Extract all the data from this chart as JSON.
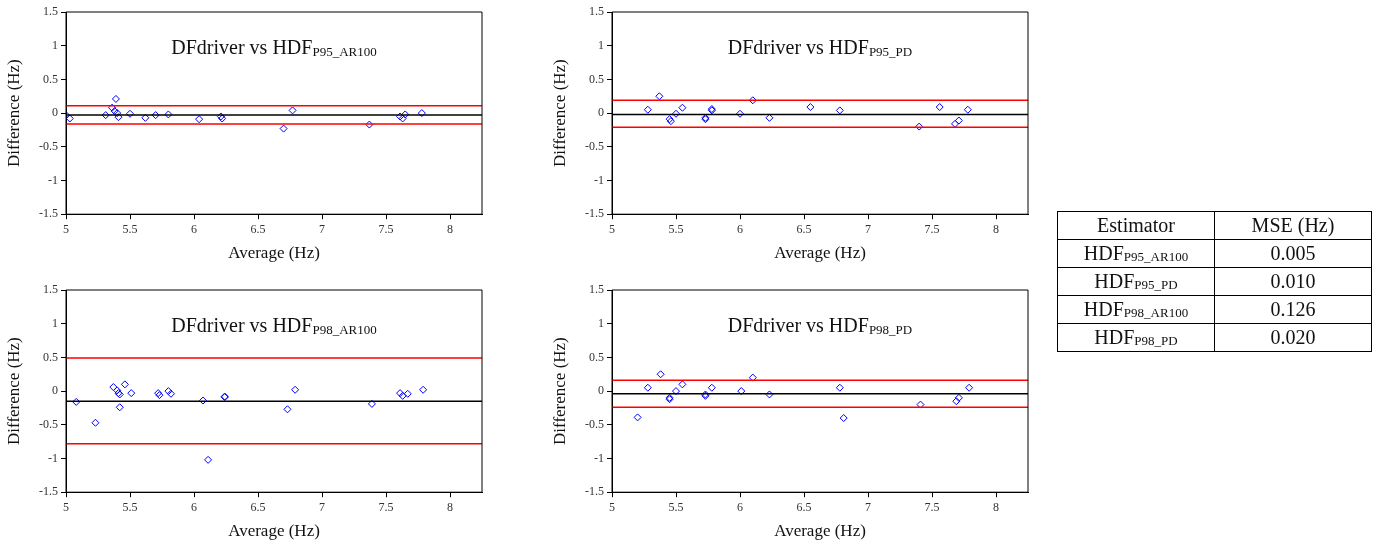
{
  "chart_data": [
    {
      "type": "scatter",
      "title": "DFdriver vs HDF$_{P95_AR100}$",
      "xlabel": "Average (Hz)",
      "ylabel": "Difference (Hz)",
      "xlim": [
        5,
        8.25
      ],
      "ylim": [
        -1.5,
        1.5
      ],
      "xticks": [
        5,
        5.5,
        6,
        6.5,
        7,
        7.5,
        8
      ],
      "yticks": [
        -1.5,
        -1,
        -0.5,
        0,
        0.5,
        1,
        1.5
      ],
      "grid": false,
      "legend": false,
      "marker": "diamond",
      "series": [
        {
          "color": "#0000ff",
          "x": [
            5.0,
            5.03,
            5.31,
            5.36,
            5.39,
            5.38,
            5.4,
            5.41,
            5.5,
            5.62,
            5.7,
            5.8,
            6.04,
            6.21,
            6.22,
            6.7,
            6.77,
            7.37,
            7.61,
            7.63,
            7.65,
            7.78
          ],
          "values": [
            -0.03,
            -0.08,
            -0.03,
            0.08,
            0.21,
            0.03,
            0.0,
            -0.06,
            -0.01,
            -0.07,
            -0.03,
            -0.02,
            -0.09,
            -0.05,
            -0.08,
            -0.23,
            0.04,
            -0.17,
            -0.05,
            -0.08,
            -0.02,
            0.0
          ]
        }
      ],
      "ref_lines": [
        {
          "axis": "y",
          "value": 0.11,
          "color": "#ff0000"
        },
        {
          "axis": "y",
          "value": -0.03,
          "color": "#000000"
        },
        {
          "axis": "y",
          "value": -0.16,
          "color": "#ff0000"
        }
      ]
    },
    {
      "type": "scatter",
      "title": "DFdriver vs HDF$_{P95_PD}$",
      "xlabel": "Average (Hz)",
      "ylabel": "Difference (Hz)",
      "xlim": [
        5,
        8.25
      ],
      "ylim": [
        -1.5,
        1.5
      ],
      "xticks": [
        5,
        5.5,
        6,
        6.5,
        7,
        7.5,
        8
      ],
      "yticks": [
        -1.5,
        -1,
        -0.5,
        0,
        0.5,
        1,
        1.5
      ],
      "grid": false,
      "legend": false,
      "marker": "diamond",
      "series": [
        {
          "color": "#0000ff",
          "x": [
            5.28,
            5.37,
            5.45,
            5.46,
            5.5,
            5.55,
            5.73,
            5.73,
            5.78,
            5.78,
            6.0,
            6.1,
            6.23,
            6.55,
            6.78,
            7.4,
            7.56,
            7.68,
            7.71,
            7.78
          ],
          "values": [
            0.05,
            0.25,
            -0.09,
            -0.12,
            -0.01,
            0.08,
            -0.07,
            -0.09,
            0.04,
            0.06,
            -0.01,
            0.19,
            -0.07,
            0.09,
            0.04,
            -0.2,
            0.09,
            -0.16,
            -0.11,
            0.05
          ]
        }
      ],
      "ref_lines": [
        {
          "axis": "y",
          "value": 0.19,
          "color": "#ff0000"
        },
        {
          "axis": "y",
          "value": -0.02,
          "color": "#000000"
        },
        {
          "axis": "y",
          "value": -0.21,
          "color": "#ff0000"
        }
      ]
    },
    {
      "type": "scatter",
      "title": "DFdriver vs HDF$_{P98_AR100}$",
      "xlabel": "Average (Hz)",
      "ylabel": "Difference (Hz)",
      "xlim": [
        5,
        8.25
      ],
      "ylim": [
        -1.5,
        1.5
      ],
      "xticks": [
        5,
        5.5,
        6,
        6.5,
        7,
        7.5,
        8
      ],
      "yticks": [
        -1.5,
        -1,
        -0.5,
        0,
        0.5,
        1,
        1.5
      ],
      "grid": false,
      "legend": false,
      "marker": "diamond",
      "series": [
        {
          "color": "#0000ff",
          "x": [
            5.08,
            5.23,
            5.37,
            5.4,
            5.41,
            5.42,
            5.42,
            5.46,
            5.51,
            5.72,
            5.73,
            5.8,
            5.82,
            6.07,
            6.11,
            6.24,
            6.24,
            6.73,
            6.79,
            7.39,
            7.61,
            7.63,
            7.67,
            7.79
          ],
          "values": [
            -0.16,
            -0.47,
            0.06,
            0.01,
            -0.03,
            -0.05,
            -0.24,
            0.1,
            -0.03,
            -0.03,
            -0.06,
            0.0,
            -0.04,
            -0.14,
            -1.02,
            -0.08,
            -0.09,
            -0.27,
            0.02,
            -0.19,
            -0.03,
            -0.07,
            -0.04,
            0.02
          ]
        }
      ],
      "ref_lines": [
        {
          "axis": "y",
          "value": 0.49,
          "color": "#ff0000"
        },
        {
          "axis": "y",
          "value": -0.15,
          "color": "#000000"
        },
        {
          "axis": "y",
          "value": -0.78,
          "color": "#ff0000"
        }
      ]
    },
    {
      "type": "scatter",
      "title": "DFdriver vs HDF$_{P98_PD}$",
      "xlabel": "Average (Hz)",
      "ylabel": "Difference (Hz)",
      "xlim": [
        5,
        8.25
      ],
      "ylim": [
        -1.5,
        1.5
      ],
      "xticks": [
        5,
        5.5,
        6,
        6.5,
        7,
        7.5,
        8
      ],
      "yticks": [
        -1.5,
        -1,
        -0.5,
        0,
        0.5,
        1,
        1.5
      ],
      "grid": false,
      "legend": false,
      "marker": "diamond",
      "series": [
        {
          "color": "#0000ff",
          "x": [
            5.2,
            5.28,
            5.38,
            5.45,
            5.45,
            5.5,
            5.55,
            5.73,
            5.73,
            5.78,
            6.01,
            6.1,
            6.23,
            6.78,
            6.81,
            7.41,
            7.69,
            7.71,
            7.79
          ],
          "values": [
            -0.39,
            0.05,
            0.25,
            -0.1,
            -0.12,
            0.0,
            0.1,
            -0.05,
            -0.07,
            0.05,
            0.0,
            0.2,
            -0.05,
            0.05,
            -0.4,
            -0.2,
            -0.15,
            -0.1,
            0.05
          ]
        }
      ],
      "ref_lines": [
        {
          "axis": "y",
          "value": 0.16,
          "color": "#ff0000"
        },
        {
          "axis": "y",
          "value": -0.04,
          "color": "#000000"
        },
        {
          "axis": "y",
          "value": -0.24,
          "color": "#ff0000"
        }
      ]
    },
    {
      "type": "other",
      "xlabel": "Estimator",
      "ylabel": "MSE (Hz)",
      "categories": [
        "HDF$_{P95_AR100}$",
        "HDF$_{P95_PD}$",
        "HDF$_{P98_AR100}$",
        "HDF$_{P98_PD}$"
      ],
      "value_labels": [
        "0.005",
        "0.010",
        "0.126",
        "0.020"
      ]
    }
  ]
}
